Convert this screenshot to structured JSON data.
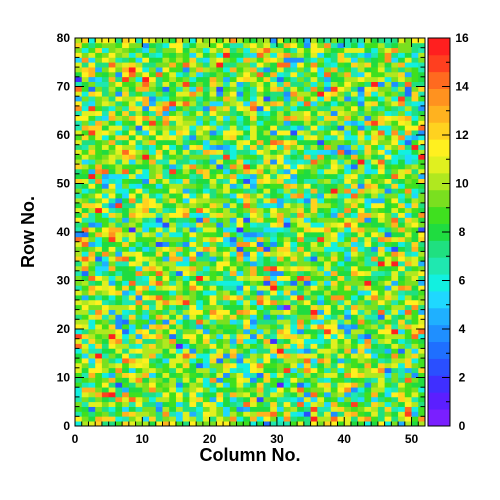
{
  "chart_data": {
    "type": "heatmap",
    "title": "",
    "xlabel": "Column No.",
    "ylabel": "Row No.",
    "xlim": [
      0,
      52
    ],
    "ylim": [
      0,
      80
    ],
    "zlim": [
      0,
      16
    ],
    "n_columns": 52,
    "n_rows": 80,
    "x_ticks": [
      "0",
      "10",
      "20",
      "30",
      "40",
      "50"
    ],
    "y_ticks": [
      "0",
      "10",
      "20",
      "30",
      "40",
      "50",
      "60",
      "70",
      "80"
    ],
    "z_ticks": [
      "0",
      "2",
      "4",
      "6",
      "8",
      "10",
      "12",
      "14",
      "16"
    ],
    "palette": [
      "#7a1fff",
      "#5b1fff",
      "#3f2fff",
      "#2a4fff",
      "#1f6fff",
      "#1f8fff",
      "#1fb0ff",
      "#1fd8ff",
      "#12f0e0",
      "#1fe8b0",
      "#1fe080",
      "#1fdc40",
      "#3fe01f",
      "#7ae01f",
      "#b0e81f",
      "#e0f01f",
      "#fff01f",
      "#ffd21f",
      "#ffb21f",
      "#ff921f",
      "#ff6a1f",
      "#ff3f1f",
      "#ff1f1f"
    ],
    "value_distribution": {
      "mean": 9,
      "spread": 2.6
    },
    "random_seed": 12345
  }
}
